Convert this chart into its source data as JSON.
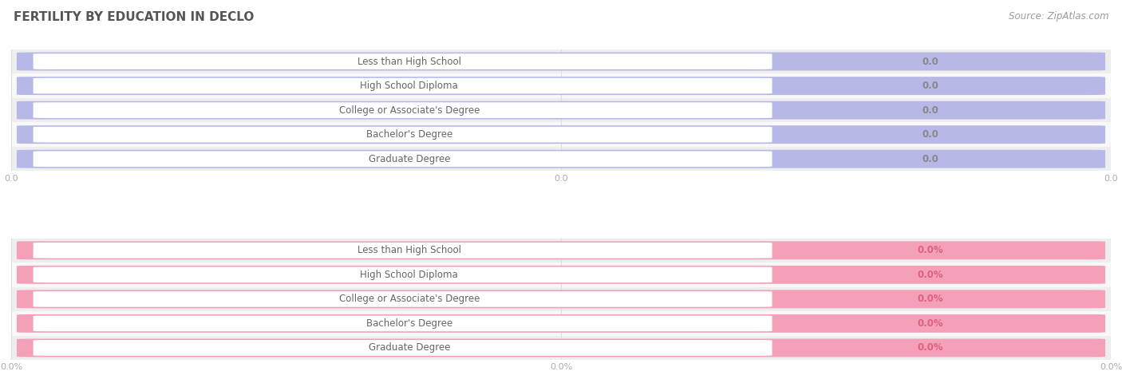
{
  "title": "FERTILITY BY EDUCATION IN DECLO",
  "source": "Source: ZipAtlas.com",
  "categories": [
    "Less than High School",
    "High School Diploma",
    "College or Associate's Degree",
    "Bachelor's Degree",
    "Graduate Degree"
  ],
  "top_values": [
    0.0,
    0.0,
    0.0,
    0.0,
    0.0
  ],
  "bottom_values": [
    0.0,
    0.0,
    0.0,
    0.0,
    0.0
  ],
  "top_pill_color": "#b8b8e8",
  "top_label_text_color": "#666666",
  "top_value_color": "#888888",
  "bottom_pill_color": "#f4a0b8",
  "bottom_label_text_color": "#666666",
  "bottom_value_color": "#e06080",
  "row_colors": [
    "#eeeeee",
    "#f8f8f8",
    "#eeeeee",
    "#f8f8f8",
    "#eeeeee"
  ],
  "title_color": "#555555",
  "source_color": "#999999",
  "axis_tick_color": "#aaaaaa",
  "grid_color": "#dddddd",
  "white": "#ffffff",
  "top_xticks": [
    "0.0",
    "0.0",
    "0.0"
  ],
  "bottom_xticks": [
    "0.0%",
    "0.0%",
    "0.0%"
  ]
}
